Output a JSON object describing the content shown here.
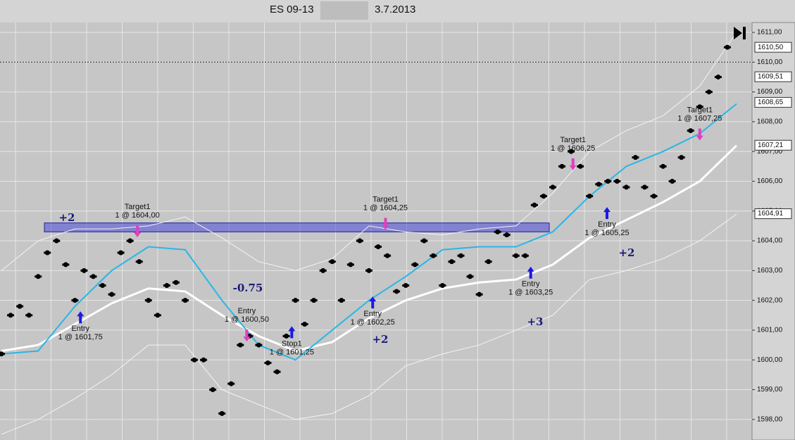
{
  "chart_data": {
    "type": "price",
    "title": "ES 09-13",
    "date": "3.7.2013",
    "ylim": [
      1597.31,
      1611.26
    ],
    "yticks": [
      {
        "value": 1598,
        "label": "1598,00"
      },
      {
        "value": 1599,
        "label": "1599,00"
      },
      {
        "value": 1600,
        "label": "1600,00"
      },
      {
        "value": 1601,
        "label": "1601,00"
      },
      {
        "value": 1602,
        "label": "1602,00"
      },
      {
        "value": 1603,
        "label": "1603,00"
      },
      {
        "value": 1604,
        "label": "1604,00"
      },
      {
        "value": 1605,
        "label": "1605,00"
      },
      {
        "value": 1606,
        "label": "1606,00"
      },
      {
        "value": 1607,
        "label": "1607,00"
      },
      {
        "value": 1608,
        "label": "1608,00"
      },
      {
        "value": 1609,
        "label": "1609,00"
      },
      {
        "value": 1610,
        "label": "1610,00"
      },
      {
        "value": 1611,
        "label": "1611,00"
      }
    ],
    "grid": true,
    "price_line": 1610,
    "price_markers": [
      {
        "value": 1610.5,
        "label": "1610,50"
      },
      {
        "value": 1609.51,
        "label": "1609,51"
      },
      {
        "value": 1608.65,
        "label": "1608,65"
      },
      {
        "value": 1607.21,
        "label": "1607,21"
      },
      {
        "value": 1604.91,
        "label": "1604,91"
      }
    ],
    "zone": {
      "low": 1604.3,
      "high": 1604.6,
      "color": "#4a4ad8"
    },
    "bars": {
      "name": "ES 09-13",
      "color": "#000000",
      "values": [
        1600.2,
        1601.5,
        1601.8,
        1601.5,
        1602.8,
        1603.6,
        1604.0,
        1603.2,
        1602.0,
        1603.0,
        1602.8,
        1602.5,
        1602.2,
        1603.6,
        1604.0,
        1603.3,
        1602.0,
        1601.5,
        1602.5,
        1602.6,
        1602.0,
        1600.0,
        1600.0,
        1599.0,
        1598.2,
        1599.2,
        1600.5,
        1600.8,
        1600.5,
        1599.9,
        1599.6,
        1600.8,
        1602.0,
        1601.2,
        1602.0,
        1603.0,
        1603.3,
        1602.0,
        1603.2,
        1604.0,
        1603.0,
        1603.8,
        1603.5,
        1602.3,
        1602.5,
        1603.2,
        1604.0,
        1603.5,
        1602.5,
        1603.3,
        1603.5,
        1602.8,
        1602.2,
        1603.3,
        1604.3,
        1604.2,
        1603.5,
        1603.5,
        1605.2,
        1605.5,
        1605.8,
        1606.5,
        1607.0,
        1606.5,
        1605.5,
        1605.9,
        1606.0,
        1606.0,
        1605.8,
        1606.8,
        1605.8,
        1605.5,
        1606.5,
        1606.0,
        1606.8,
        1607.7,
        1608.5,
        1609.0,
        1609.5,
        1610.5
      ]
    },
    "series": [
      {
        "name": "upper band",
        "color": "#f4f4f4",
        "width": 1,
        "x": [
          0,
          4,
          8,
          12,
          16,
          20,
          24,
          28,
          32,
          36,
          40,
          44,
          48,
          52,
          56,
          60,
          64,
          68,
          72,
          76,
          80
        ],
        "values": [
          1603.0,
          1604.0,
          1604.4,
          1604.4,
          1604.5,
          1604.8,
          1604.1,
          1603.3,
          1603.0,
          1603.4,
          1604.5,
          1604.3,
          1604.2,
          1604.4,
          1604.5,
          1605.6,
          1607.0,
          1607.7,
          1608.2,
          1609.2,
          1611.0
        ]
      },
      {
        "name": "lower band",
        "color": "#f4f4f4",
        "width": 1,
        "x": [
          0,
          4,
          8,
          12,
          16,
          20,
          24,
          28,
          32,
          36,
          40,
          44,
          48,
          52,
          56,
          60,
          64,
          68,
          72,
          76,
          80
        ],
        "values": [
          1597.5,
          1598.0,
          1598.7,
          1599.5,
          1600.5,
          1600.5,
          1599.0,
          1598.5,
          1598.0,
          1598.2,
          1598.8,
          1599.8,
          1600.2,
          1600.5,
          1601.0,
          1601.5,
          1602.7,
          1603.0,
          1603.4,
          1604.0,
          1604.9
        ]
      },
      {
        "name": "slow average",
        "color": "#ffffff",
        "width": 3,
        "x": [
          0,
          4,
          8,
          12,
          16,
          20,
          24,
          28,
          32,
          36,
          40,
          44,
          48,
          52,
          56,
          60,
          64,
          68,
          72,
          76,
          80
        ],
        "values": [
          1600.3,
          1600.5,
          1601.2,
          1601.9,
          1602.4,
          1602.3,
          1601.5,
          1600.8,
          1600.3,
          1600.6,
          1601.4,
          1602.0,
          1602.4,
          1602.6,
          1602.7,
          1603.2,
          1604.1,
          1604.7,
          1605.3,
          1606.0,
          1607.2
        ]
      },
      {
        "name": "fast average",
        "color": "#29b6e8",
        "width": 2,
        "x": [
          0,
          4,
          8,
          12,
          16,
          20,
          24,
          28,
          32,
          36,
          40,
          44,
          48,
          52,
          56,
          60,
          64,
          68,
          72,
          76,
          80
        ],
        "values": [
          1600.2,
          1600.3,
          1601.8,
          1603.0,
          1603.8,
          1603.7,
          1602.0,
          1600.5,
          1600.0,
          1601.0,
          1602.0,
          1602.8,
          1603.7,
          1603.8,
          1603.8,
          1604.3,
          1605.5,
          1606.5,
          1607.0,
          1607.6,
          1608.6
        ]
      }
    ],
    "annotations": [
      {
        "label": "Target1",
        "detail": "1 @ 1604,00",
        "value": 1604.0,
        "direction": "down"
      },
      {
        "label": "Entry",
        "detail": "1 @ 1601,75",
        "value": 1601.75,
        "direction": "up"
      },
      {
        "label": "Entry",
        "detail": "1 @ 1600,50",
        "value": 1600.5,
        "direction": "down"
      },
      {
        "label": "Stop1",
        "detail": "1 @ 1601,25",
        "value": 1601.25,
        "direction": "up"
      },
      {
        "label": "Entry",
        "detail": "1 @ 1602,25",
        "value": 1602.25,
        "direction": "up"
      },
      {
        "label": "Target1",
        "detail": "1 @ 1604,25",
        "value": 1604.25,
        "direction": "down"
      },
      {
        "label": "Entry",
        "detail": "1 @ 1603,25",
        "value": 1603.25,
        "direction": "up"
      },
      {
        "label": "Target1",
        "detail": "1 @ 1606,25",
        "value": 1606.25,
        "direction": "down"
      },
      {
        "label": "Entry",
        "detail": "1 @ 1605,25",
        "value": 1605.25,
        "direction": "up"
      },
      {
        "label": "Target1",
        "detail": "1 @ 1607,25",
        "value": 1607.25,
        "direction": "down"
      }
    ],
    "pnl_labels": [
      "+2",
      "-0.75",
      "+2",
      "+3",
      "+2"
    ]
  }
}
